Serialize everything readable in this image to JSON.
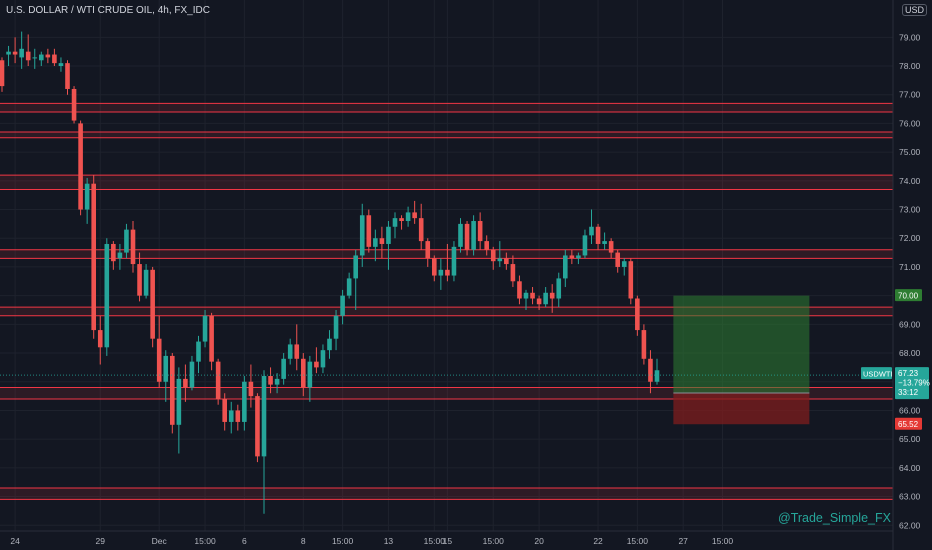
{
  "header": {
    "title": "U.S. DOLLAR / WTI CRUDE OIL, 4h, FX_IDC"
  },
  "currency_badge": "USD",
  "watermark": "@Trade_Simple_FX",
  "colors": {
    "background": "#131722",
    "bull": "#26a69a",
    "bear": "#ef5350",
    "zone": "#f23645",
    "grid": "#1e222d",
    "text": "#b2b5be",
    "profit": "#2e7d32",
    "loss": "#7f1d1d"
  },
  "chart_data": {
    "type": "candlestick",
    "title": "U.S. DOLLAR / WTI CRUDE OIL, 4h, FX_IDC",
    "ylim": [
      61.8,
      80.3
    ],
    "y_ticks": [
      "79.00",
      "78.00",
      "77.00",
      "76.00",
      "75.00",
      "74.00",
      "73.00",
      "72.00",
      "71.00",
      "70.00",
      "69.00",
      "68.00",
      "67.00",
      "66.00",
      "65.00",
      "64.00",
      "63.00",
      "62.00"
    ],
    "x_ticks": [
      {
        "label": "24",
        "i": 2
      },
      {
        "label": "29",
        "i": 15
      },
      {
        "label": "Dec",
        "i": 24
      },
      {
        "label": "15:00",
        "i": 31
      },
      {
        "label": "6",
        "i": 37
      },
      {
        "label": "8",
        "i": 46
      },
      {
        "label": "15:00",
        "i": 52
      },
      {
        "label": "13",
        "i": 59
      },
      {
        "label": "15:00",
        "i": 66
      },
      {
        "label": "15",
        "i": 68
      },
      {
        "label": "15:00",
        "i": 75
      },
      {
        "label": "20",
        "i": 82
      },
      {
        "label": "22",
        "i": 91
      },
      {
        "label": "15:00",
        "i": 97
      },
      {
        "label": "27",
        "i": 104
      },
      {
        "label": "15:00",
        "i": 110
      }
    ],
    "candles": [
      [
        78.2,
        78.3,
        77.1,
        77.3
      ],
      [
        78.4,
        78.7,
        78.0,
        78.5
      ],
      [
        78.5,
        79.0,
        78.1,
        78.4
      ],
      [
        78.3,
        79.2,
        77.9,
        78.6
      ],
      [
        78.5,
        79.1,
        78.0,
        78.2
      ],
      [
        78.3,
        78.6,
        77.9,
        78.3
      ],
      [
        78.2,
        78.5,
        78.0,
        78.4
      ],
      [
        78.4,
        78.6,
        78.1,
        78.3
      ],
      [
        78.4,
        78.6,
        78.0,
        78.1
      ],
      [
        78.0,
        78.3,
        77.8,
        78.1
      ],
      [
        78.1,
        78.2,
        77.0,
        77.2
      ],
      [
        77.2,
        77.3,
        76.0,
        76.1
      ],
      [
        76.0,
        76.1,
        72.8,
        73.0
      ],
      [
        73.0,
        74.1,
        72.5,
        73.9
      ],
      [
        73.9,
        74.2,
        68.5,
        68.8
      ],
      [
        68.8,
        69.3,
        67.6,
        68.2
      ],
      [
        68.2,
        72.0,
        67.9,
        71.8
      ],
      [
        71.8,
        71.9,
        70.9,
        71.2
      ],
      [
        71.3,
        71.8,
        70.9,
        71.5
      ],
      [
        71.5,
        72.5,
        71.3,
        72.3
      ],
      [
        72.3,
        72.6,
        70.8,
        71.1
      ],
      [
        71.1,
        71.5,
        69.8,
        70.0
      ],
      [
        70.0,
        71.1,
        69.9,
        70.9
      ],
      [
        70.9,
        71.0,
        68.2,
        68.5
      ],
      [
        68.5,
        69.3,
        66.8,
        67.0
      ],
      [
        67.0,
        68.1,
        66.3,
        67.9
      ],
      [
        67.9,
        68.0,
        65.2,
        65.5
      ],
      [
        65.5,
        67.5,
        64.5,
        67.1
      ],
      [
        67.1,
        67.6,
        66.3,
        66.8
      ],
      [
        66.8,
        67.9,
        66.7,
        67.7
      ],
      [
        67.7,
        68.6,
        67.3,
        68.4
      ],
      [
        68.4,
        69.5,
        68.2,
        69.3
      ],
      [
        69.3,
        69.4,
        67.4,
        67.7
      ],
      [
        67.7,
        67.8,
        66.2,
        66.4
      ],
      [
        66.4,
        66.6,
        65.3,
        65.6
      ],
      [
        65.6,
        66.3,
        65.2,
        66.0
      ],
      [
        66.0,
        66.2,
        65.3,
        65.6
      ],
      [
        65.6,
        67.2,
        65.3,
        67.0
      ],
      [
        67.0,
        67.6,
        66.1,
        66.5
      ],
      [
        66.5,
        66.6,
        64.2,
        64.4
      ],
      [
        64.4,
        67.4,
        62.4,
        67.2
      ],
      [
        67.2,
        67.5,
        66.6,
        66.9
      ],
      [
        66.9,
        67.3,
        66.6,
        67.1
      ],
      [
        67.1,
        68.0,
        66.9,
        67.8
      ],
      [
        67.8,
        68.5,
        67.6,
        68.3
      ],
      [
        68.3,
        69.0,
        67.4,
        67.8
      ],
      [
        67.8,
        68.0,
        66.5,
        66.8
      ],
      [
        66.8,
        67.9,
        66.3,
        67.7
      ],
      [
        67.7,
        68.2,
        67.3,
        67.5
      ],
      [
        67.5,
        68.3,
        67.3,
        68.1
      ],
      [
        68.1,
        68.8,
        67.8,
        68.5
      ],
      [
        68.5,
        69.5,
        68.1,
        69.3
      ],
      [
        69.3,
        70.2,
        69.0,
        70.0
      ],
      [
        70.0,
        70.8,
        69.9,
        70.6
      ],
      [
        70.6,
        71.6,
        69.5,
        71.4
      ],
      [
        71.4,
        73.2,
        71.0,
        72.8
      ],
      [
        72.8,
        73.0,
        71.5,
        71.7
      ],
      [
        71.7,
        72.3,
        71.2,
        72.0
      ],
      [
        72.0,
        72.4,
        71.3,
        71.8
      ],
      [
        71.8,
        72.6,
        70.9,
        72.4
      ],
      [
        72.4,
        72.9,
        72.0,
        72.7
      ],
      [
        72.7,
        72.8,
        72.3,
        72.6
      ],
      [
        72.6,
        73.1,
        72.4,
        72.9
      ],
      [
        72.9,
        73.3,
        72.5,
        72.7
      ],
      [
        72.7,
        73.2,
        71.6,
        71.9
      ],
      [
        71.9,
        72.0,
        71.0,
        71.3
      ],
      [
        71.3,
        71.4,
        70.5,
        70.7
      ],
      [
        70.7,
        71.3,
        70.2,
        70.9
      ],
      [
        70.9,
        71.8,
        70.5,
        70.7
      ],
      [
        70.7,
        71.9,
        70.5,
        71.7
      ],
      [
        71.7,
        72.7,
        71.5,
        72.5
      ],
      [
        72.5,
        72.6,
        71.4,
        71.6
      ],
      [
        71.6,
        72.8,
        71.4,
        72.6
      ],
      [
        72.6,
        72.9,
        71.6,
        71.9
      ],
      [
        71.9,
        72.1,
        71.4,
        71.6
      ],
      [
        71.6,
        71.7,
        70.9,
        71.2
      ],
      [
        71.2,
        71.9,
        71.0,
        71.3
      ],
      [
        71.3,
        71.5,
        70.9,
        71.1
      ],
      [
        71.1,
        71.4,
        70.3,
        70.5
      ],
      [
        70.5,
        70.7,
        69.7,
        69.9
      ],
      [
        69.9,
        70.2,
        69.5,
        70.1
      ],
      [
        70.1,
        70.3,
        69.7,
        69.9
      ],
      [
        69.9,
        70.0,
        69.5,
        69.7
      ],
      [
        69.7,
        70.3,
        69.6,
        70.1
      ],
      [
        70.1,
        70.4,
        69.4,
        69.9
      ],
      [
        69.9,
        70.8,
        69.6,
        70.6
      ],
      [
        70.6,
        71.6,
        70.3,
        71.4
      ],
      [
        71.4,
        71.6,
        71.1,
        71.3
      ],
      [
        71.3,
        71.5,
        71.1,
        71.4
      ],
      [
        71.4,
        72.3,
        71.3,
        72.1
      ],
      [
        72.1,
        73.0,
        71.8,
        72.4
      ],
      [
        72.4,
        72.5,
        71.6,
        71.8
      ],
      [
        71.8,
        72.2,
        71.6,
        71.9
      ],
      [
        71.9,
        72.0,
        71.3,
        71.5
      ],
      [
        71.5,
        71.6,
        70.8,
        71.0
      ],
      [
        71.0,
        71.3,
        70.7,
        71.2
      ],
      [
        71.2,
        71.3,
        69.7,
        69.9
      ],
      [
        69.9,
        70.0,
        68.6,
        68.8
      ],
      [
        68.8,
        69.0,
        67.6,
        67.8
      ],
      [
        67.8,
        68.1,
        66.6,
        67.0
      ],
      [
        67.0,
        67.8,
        66.9,
        67.4
      ]
    ],
    "zones": [
      [
        76.4,
        76.7
      ],
      [
        75.5,
        75.7
      ],
      [
        73.7,
        74.2
      ],
      [
        71.3,
        71.6
      ],
      [
        69.3,
        69.6
      ],
      [
        66.4,
        66.8
      ],
      [
        62.9,
        63.3
      ]
    ],
    "position": {
      "entry": "66.61",
      "target": "70.00",
      "stop": "65.52"
    },
    "last_price": {
      "symbol": "USDWTI",
      "price": "67.23",
      "change": "−13.79%",
      "countdown": "33:12"
    }
  }
}
